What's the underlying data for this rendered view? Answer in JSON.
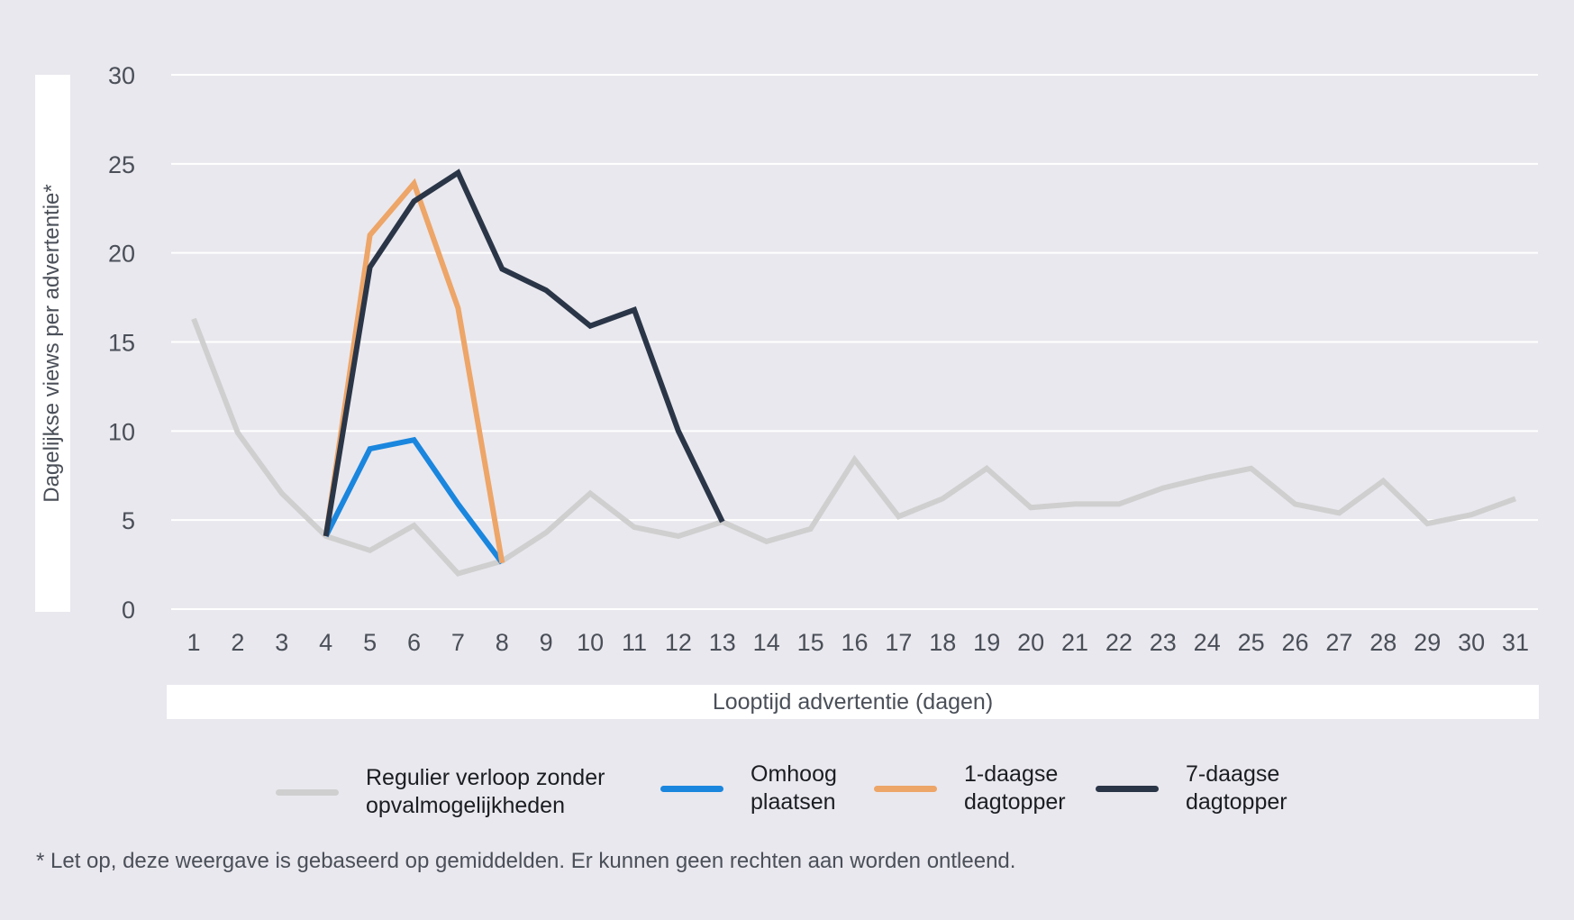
{
  "chart_data": {
    "type": "line",
    "xlabel": "Looptijd advertentie (dagen)",
    "ylabel": "Dagelijkse views per advertentie*",
    "ylim": [
      0,
      30
    ],
    "y_ticks": [
      "0",
      "5",
      "10",
      "15",
      "20",
      "25",
      "30"
    ],
    "x_ticks": [
      "1",
      "2",
      "3",
      "4",
      "5",
      "6",
      "7",
      "8",
      "9",
      "10",
      "11",
      "12",
      "13",
      "14",
      "15",
      "16",
      "17",
      "18",
      "19",
      "20",
      "21",
      "22",
      "23",
      "24",
      "25",
      "26",
      "27",
      "28",
      "29",
      "30",
      "31"
    ],
    "grid": true,
    "legend_position": "bottom",
    "series": [
      {
        "name": "Regulier verloop zonder\nopvalmogelijkheden",
        "color": "#d0cfcf",
        "x": [
          1,
          2,
          3,
          4,
          5,
          6,
          7,
          8,
          9,
          10,
          11,
          12,
          13,
          14,
          15,
          16,
          17,
          18,
          19,
          20,
          21,
          22,
          23,
          24,
          25,
          26,
          27,
          28,
          29,
          30,
          31
        ],
        "y": [
          16.3,
          9.9,
          6.5,
          4.1,
          3.3,
          4.7,
          2.0,
          2.7,
          4.3,
          6.5,
          4.6,
          4.1,
          4.9,
          3.8,
          4.5,
          8.4,
          5.2,
          6.2,
          7.9,
          5.7,
          5.9,
          5.9,
          6.8,
          7.4,
          7.9,
          5.9,
          5.4,
          7.2,
          4.8,
          5.3,
          6.2
        ]
      },
      {
        "name": "Omhoog\nplaatsen",
        "color": "#1a86de",
        "x": [
          4,
          5,
          6,
          7,
          8
        ],
        "y": [
          4.1,
          9.0,
          9.5,
          5.9,
          2.6
        ]
      },
      {
        "name": "1-daagse\ndagtopper",
        "color": "#eda568",
        "x": [
          4,
          5,
          6,
          7,
          8
        ],
        "y": [
          4.1,
          21.0,
          23.9,
          16.9,
          2.6
        ]
      },
      {
        "name": "7-daagse\ndagtopper",
        "color": "#2a3647",
        "x": [
          4,
          5,
          6,
          7,
          8,
          9,
          10,
          11,
          12,
          13
        ],
        "y": [
          4.1,
          19.2,
          22.9,
          24.5,
          19.1,
          17.9,
          15.9,
          16.8,
          10.0,
          4.9
        ]
      }
    ]
  },
  "footnote": "* Let op, deze weergave is gebaseerd op gemiddelden. Er kunnen geen rechten aan worden ontleend."
}
